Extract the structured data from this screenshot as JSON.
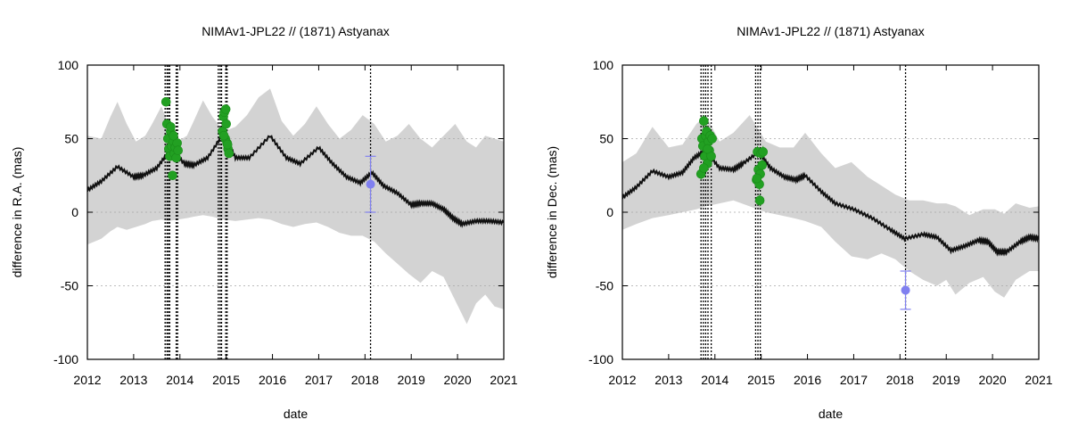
{
  "chart_data": [
    {
      "type": "line",
      "title": "NIMAv1-JPL22 // (1871) Astyanax",
      "xlabel": "date",
      "ylabel": "difference in R.A. (mas)",
      "xlim": [
        2012,
        2021
      ],
      "ylim": [
        -100,
        100
      ],
      "x_ticks": [
        "2012",
        "2013",
        "2014",
        "2015",
        "2016",
        "2017",
        "2018",
        "2019",
        "2020",
        "2021"
      ],
      "y_ticks": [
        "100",
        "50",
        "0",
        "-50",
        "-100"
      ],
      "grid": "y-dashed",
      "series": [
        {
          "name": "uncertainty band",
          "style": "band",
          "color": "#d3d3d3",
          "x": [
            2012,
            2012.3,
            2012.5,
            2012.65,
            2012.85,
            2013.05,
            2013.25,
            2013.4,
            2013.6,
            2013.75,
            2013.95,
            2014.15,
            2014.3,
            2014.5,
            2014.7,
            2014.95,
            2015.2,
            2015.45,
            2015.7,
            2015.95,
            2016.2,
            2016.45,
            2016.7,
            2016.95,
            2017.2,
            2017.45,
            2017.7,
            2017.95,
            2018.2,
            2018.45,
            2018.7,
            2018.95,
            2019.2,
            2019.45,
            2019.7,
            2019.95,
            2020.2,
            2020.4,
            2020.6,
            2020.8,
            2021
          ],
          "upper": [
            52,
            50,
            65,
            75,
            60,
            48,
            52,
            60,
            72,
            60,
            48,
            52,
            62,
            76,
            65,
            55,
            58,
            66,
            78,
            84,
            62,
            52,
            60,
            72,
            60,
            50,
            56,
            66,
            60,
            48,
            52,
            60,
            50,
            44,
            52,
            60,
            48,
            44,
            52,
            50,
            48
          ],
          "lower": [
            -22,
            -18,
            -13,
            -10,
            -12,
            -10,
            -8,
            -6,
            -5,
            -6,
            -5,
            -4,
            -3,
            -2,
            -3,
            -5,
            -6,
            -5,
            -4,
            -5,
            -8,
            -10,
            -8,
            -7,
            -10,
            -14,
            -16,
            -16,
            -20,
            -28,
            -35,
            -42,
            -48,
            -40,
            -44,
            -60,
            -76,
            -62,
            -56,
            -64,
            -66
          ]
        },
        {
          "name": "NIMAv1-JPL22",
          "style": "line",
          "color": "#111111",
          "x": [
            2012,
            2012.3,
            2012.65,
            2013,
            2013.2,
            2013.5,
            2013.8,
            2014.1,
            2014.3,
            2014.6,
            2014.95,
            2015.2,
            2015.5,
            2015.95,
            2016.3,
            2016.6,
            2017,
            2017.3,
            2017.6,
            2017.9,
            2018.15,
            2018.4,
            2018.7,
            2019,
            2019.2,
            2019.45,
            2019.7,
            2019.9,
            2020.1,
            2020.4,
            2020.7,
            2021
          ],
          "y": [
            15,
            21,
            31,
            24,
            25,
            30,
            43,
            33,
            32,
            37,
            54,
            37,
            37,
            52,
            37,
            33,
            44,
            33,
            24,
            20,
            27,
            18,
            13,
            5,
            6,
            6,
            2,
            -4,
            -8,
            -6,
            -6,
            -7
          ]
        },
        {
          "name": "observations",
          "style": "scatter",
          "color": "#22a022",
          "x": [
            2013.7,
            2013.72,
            2013.74,
            2013.76,
            2013.78,
            2013.8,
            2013.82,
            2013.84,
            2013.86,
            2013.88,
            2013.9,
            2013.92,
            2013.94,
            2013.96,
            2013.8,
            2013.86,
            2014.92,
            2014.94,
            2014.96,
            2014.98,
            2015.0,
            2015.02,
            2015.04,
            2015.06,
            2014.95,
            2014.99,
            2015.03
          ],
          "y": [
            75,
            60,
            50,
            43,
            38,
            55,
            45,
            25,
            48,
            40,
            44,
            37,
            47,
            42,
            58,
            52,
            55,
            65,
            68,
            50,
            60,
            47,
            43,
            40,
            52,
            70,
            46
          ],
          "error": 3
        },
        {
          "name": "highlighted observation",
          "style": "errorbar",
          "color": "#8080f0",
          "x": [
            2018.12
          ],
          "y": [
            19
          ],
          "error": 19
        }
      ],
      "vlines": [
        2013.68,
        2013.72,
        2013.75,
        2013.78,
        2013.92,
        2013.95,
        2014.83,
        2014.87,
        2014.9,
        2014.99,
        2015.02,
        2018.12
      ]
    },
    {
      "type": "line",
      "title": "NIMAv1-JPL22 // (1871) Astyanax",
      "xlabel": "date",
      "ylabel": "difference in Dec. (mas)",
      "xlim": [
        2012,
        2021
      ],
      "ylim": [
        -100,
        100
      ],
      "x_ticks": [
        "2012",
        "2013",
        "2014",
        "2015",
        "2016",
        "2017",
        "2018",
        "2019",
        "2020",
        "2021"
      ],
      "y_ticks": [
        "100",
        "50",
        "0",
        "-50",
        "-100"
      ],
      "grid": "y-dashed",
      "series": [
        {
          "name": "uncertainty band",
          "style": "band",
          "color": "#d3d3d3",
          "x": [
            2012,
            2012.3,
            2012.65,
            2013,
            2013.3,
            2013.6,
            2013.8,
            2014.1,
            2014.4,
            2014.75,
            2015.1,
            2015.4,
            2015.7,
            2015.95,
            2016.3,
            2016.6,
            2016.95,
            2017.3,
            2017.6,
            2017.9,
            2018.2,
            2018.5,
            2018.8,
            2019,
            2019.2,
            2019.5,
            2019.8,
            2020.05,
            2020.25,
            2020.5,
            2020.8,
            2021
          ],
          "upper": [
            34,
            40,
            58,
            44,
            46,
            60,
            66,
            48,
            54,
            66,
            48,
            44,
            44,
            54,
            40,
            30,
            34,
            24,
            18,
            12,
            8,
            8,
            6,
            6,
            4,
            -2,
            2,
            2,
            -1,
            6,
            3,
            4
          ],
          "lower": [
            -12,
            -8,
            -4,
            -2,
            0,
            2,
            4,
            6,
            8,
            4,
            0,
            -2,
            -4,
            -6,
            -10,
            -20,
            -30,
            -32,
            -28,
            -32,
            -40,
            -46,
            -50,
            -46,
            -56,
            -48,
            -44,
            -54,
            -58,
            -46,
            -40,
            -40
          ]
        },
        {
          "name": "NIMAv1-JPL22",
          "style": "line",
          "color": "#111111",
          "x": [
            2012,
            2012.3,
            2012.65,
            2013,
            2013.3,
            2013.55,
            2013.8,
            2014.1,
            2014.4,
            2014.6,
            2014.95,
            2015.2,
            2015.5,
            2015.75,
            2015.95,
            2016.3,
            2016.6,
            2017,
            2017.4,
            2017.8,
            2018.1,
            2018.5,
            2018.8,
            2019.1,
            2019.4,
            2019.7,
            2019.9,
            2020.1,
            2020.3,
            2020.6,
            2020.8,
            2021
          ],
          "y": [
            10,
            17,
            28,
            24,
            27,
            37,
            42,
            30,
            29,
            33,
            41,
            30,
            24,
            22,
            25,
            14,
            6,
            2,
            -4,
            -12,
            -18,
            -15,
            -17,
            -26,
            -23,
            -19,
            -20,
            -27,
            -27,
            -20,
            -17,
            -18
          ]
        },
        {
          "name": "observations",
          "style": "scatter",
          "color": "#22a022",
          "x": [
            2013.7,
            2013.72,
            2013.74,
            2013.76,
            2013.78,
            2013.8,
            2013.82,
            2013.84,
            2013.86,
            2013.88,
            2013.9,
            2013.92,
            2013.94,
            2013.76,
            2013.84,
            2014.9,
            2014.92,
            2014.94,
            2014.96,
            2014.98,
            2015.0,
            2015.02,
            2015.04,
            2014.91,
            2014.97
          ],
          "y": [
            26,
            50,
            45,
            62,
            38,
            52,
            55,
            33,
            48,
            42,
            52,
            38,
            50,
            30,
            43,
            22,
            41,
            29,
            19,
            26,
            40,
            32,
            41,
            23,
            8
          ],
          "error": 4
        },
        {
          "name": "highlighted observation",
          "style": "errorbar",
          "color": "#8080f0",
          "x": [
            2018.12
          ],
          "y": [
            -53
          ],
          "error": 13
        }
      ],
      "vlines": [
        2013.7,
        2013.75,
        2013.8,
        2013.85,
        2013.92,
        2014.88,
        2014.93,
        2014.98,
        2018.12
      ]
    }
  ]
}
